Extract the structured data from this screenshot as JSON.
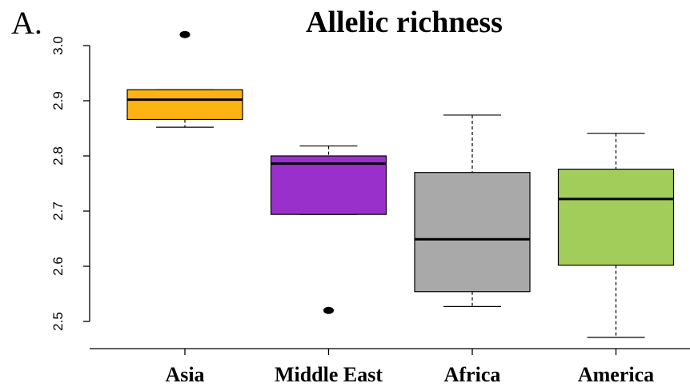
{
  "panel_label": "A.",
  "chart_data": {
    "type": "boxplot",
    "title": "Allelic richness",
    "xlabel": "",
    "ylabel": "",
    "ylim": [
      2.45,
      3.06
    ],
    "yticks": [
      2.5,
      2.6,
      2.7,
      2.8,
      2.9,
      3.0
    ],
    "ytick_labels": [
      "2.5",
      "2.6",
      "2.7",
      "2.8",
      "2.9",
      "3.0"
    ],
    "grid": false,
    "categories": [
      "Asia",
      "Middle East",
      "Africa",
      "America"
    ],
    "boxes": [
      {
        "category": "Asia",
        "whisker_low": 2.852,
        "q1": 2.866,
        "median": 2.902,
        "q3": 2.92,
        "whisker_high": 2.92,
        "outliers": [
          3.02
        ],
        "color": "#FFB312"
      },
      {
        "category": "Middle East",
        "whisker_low": 2.694,
        "q1": 2.694,
        "median": 2.786,
        "q3": 2.8,
        "whisker_high": 2.818,
        "outliers": [
          2.52
        ],
        "color": "#9A30CC"
      },
      {
        "category": "Africa",
        "whisker_low": 2.527,
        "q1": 2.554,
        "median": 2.649,
        "q3": 2.77,
        "whisker_high": 2.874,
        "outliers": [],
        "color": "#A9A9A9"
      },
      {
        "category": "America",
        "whisker_low": 2.471,
        "q1": 2.602,
        "median": 2.722,
        "q3": 2.776,
        "whisker_high": 2.841,
        "outliers": [],
        "color": "#A2CD5A"
      }
    ]
  }
}
